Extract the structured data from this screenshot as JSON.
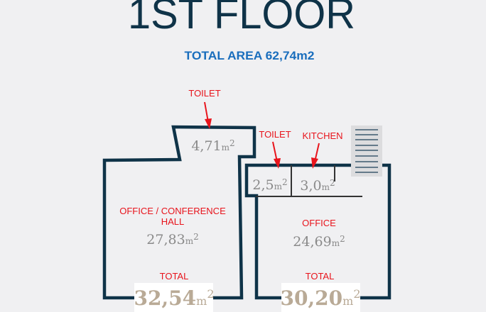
{
  "title": "1ST FLOOR",
  "subtitle": "TOTAL AREA 62,74m2",
  "unit": "m",
  "unit_sup": "2",
  "colors": {
    "walls": "#0f3348",
    "labels": "#e8141c",
    "subtitle": "#1a6ebd",
    "areas": "#8a8a8a",
    "totals": "#b9aa96"
  },
  "rooms": {
    "toilet_top": {
      "label": "TOILET",
      "area": "4,71"
    },
    "office_conference": {
      "label_line1": "OFFICE / CONFERENCE",
      "label_line2": "HALL",
      "area": "27,83"
    },
    "toilet_right": {
      "label": "TOILET",
      "area": "2,5"
    },
    "kitchen": {
      "label": "KITCHEN",
      "area": "3,0"
    },
    "office": {
      "label": "OFFICE",
      "area": "24,69"
    }
  },
  "totals": {
    "left": {
      "label": "TOTAL",
      "value": "32,54"
    },
    "right": {
      "label": "TOTAL",
      "value": "30,20"
    }
  },
  "icons": {
    "stairs": "stairs-icon"
  }
}
